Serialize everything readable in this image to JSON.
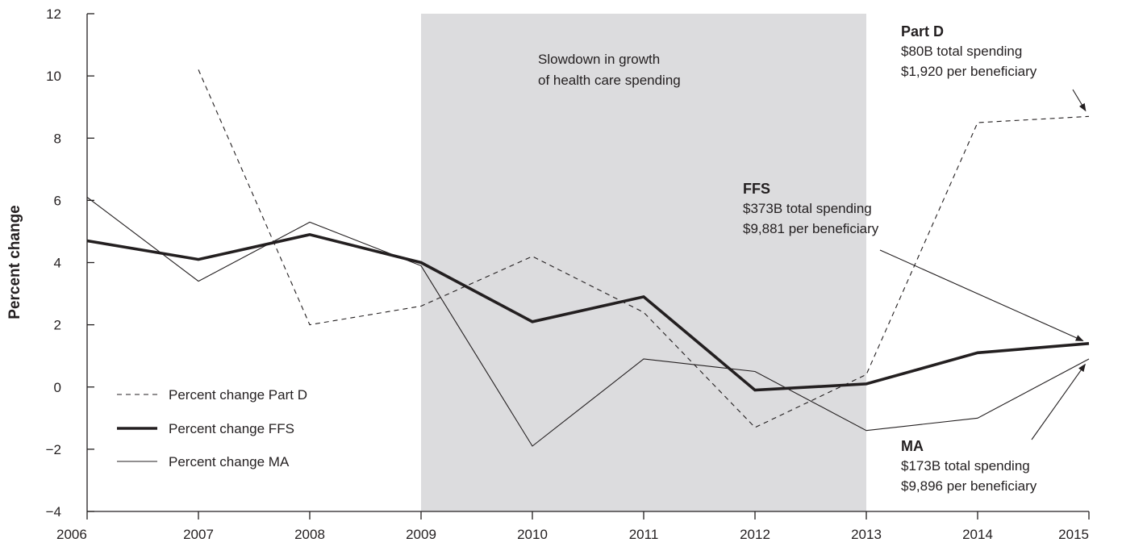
{
  "chart_data": {
    "type": "line",
    "ylabel": "Percent change",
    "xlabel": "",
    "ylim": [
      -4,
      12
    ],
    "yticks": [
      "−4",
      "−2",
      "0",
      "2",
      "4",
      "6",
      "8",
      "10",
      "12"
    ],
    "x": [
      "2006",
      "2007",
      "2008",
      "2009",
      "2010",
      "2011",
      "2012",
      "2013",
      "2014",
      "2015"
    ],
    "shaded_region": {
      "from": "2009",
      "to": "2013",
      "label_lines": [
        "Slowdown in growth",
        "of health care spending"
      ],
      "color": "#dcdcde"
    },
    "series": [
      {
        "name": "Percent change Part D",
        "style": "dashed",
        "values": [
          null,
          10.2,
          2.0,
          2.6,
          4.2,
          2.4,
          -1.3,
          0.4,
          8.5,
          8.7
        ]
      },
      {
        "name": "Percent change FFS",
        "style": "thick",
        "values": [
          4.7,
          4.1,
          4.9,
          4.0,
          2.1,
          2.9,
          -0.1,
          0.1,
          1.1,
          1.4
        ]
      },
      {
        "name": "Percent change MA",
        "style": "thin",
        "values": [
          6.1,
          3.4,
          5.3,
          3.9,
          -1.9,
          0.9,
          0.5,
          -1.4,
          -1.0,
          0.9
        ]
      }
    ],
    "annotations": [
      {
        "id": "partd",
        "title": "Part D",
        "lines": [
          "$80B total spending",
          "$1,920 per beneficiary"
        ],
        "points_to": {
          "series": "Percent change Part D",
          "x": "2015"
        }
      },
      {
        "id": "ffs",
        "title": "FFS",
        "lines": [
          "$373B total spending",
          "$9,881 per beneficiary"
        ],
        "points_to": {
          "series": "Percent change FFS",
          "x": "2015"
        }
      },
      {
        "id": "ma",
        "title": "MA",
        "lines": [
          "$173B total spending",
          "$9,896 per beneficiary"
        ],
        "points_to": {
          "series": "Percent change MA",
          "x": "2015"
        }
      }
    ],
    "legend_placement": "bottom-left",
    "grid": false,
    "colors": {
      "line": "#231f20",
      "shade": "#dcdcde"
    }
  }
}
